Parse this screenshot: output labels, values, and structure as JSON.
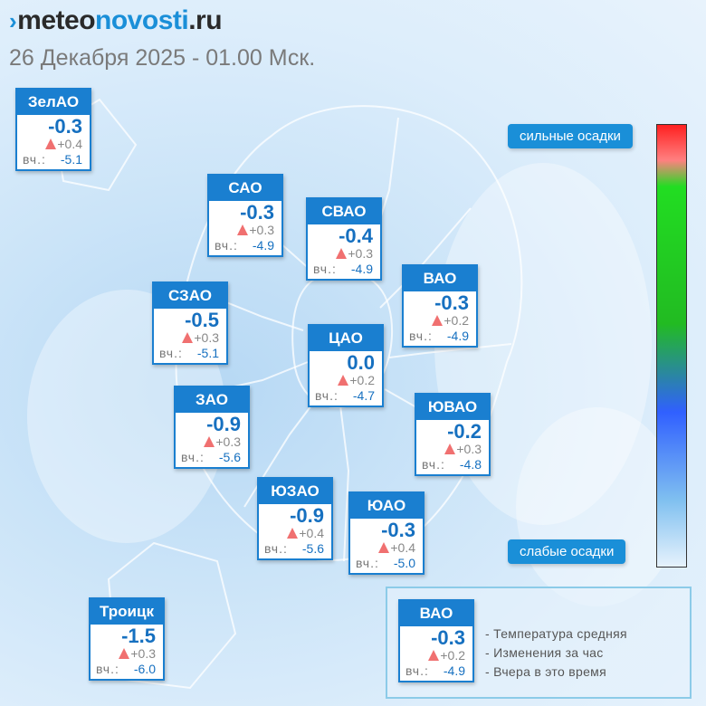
{
  "header": {
    "logo_prefix": "meteo",
    "logo_suffix": "novosti",
    "logo_domain": ".ru",
    "datetime": "26 Декабря 2025 - 01.00 Мск."
  },
  "districts": [
    {
      "name": "ЗелАО",
      "temp": "-0.3",
      "change": "+0.4",
      "yesterday_label": "вч.:",
      "yesterday": "-5.1"
    },
    {
      "name": "САО",
      "temp": "-0.3",
      "change": "+0.3",
      "yesterday_label": "вч.:",
      "yesterday": "-4.9"
    },
    {
      "name": "СВАО",
      "temp": "-0.4",
      "change": "+0.3",
      "yesterday_label": "вч.:",
      "yesterday": "-4.9"
    },
    {
      "name": "ВАО",
      "temp": "-0.3",
      "change": "+0.2",
      "yesterday_label": "вч.:",
      "yesterday": "-4.9"
    },
    {
      "name": "СЗАО",
      "temp": "-0.5",
      "change": "+0.3",
      "yesterday_label": "вч.:",
      "yesterday": "-5.1"
    },
    {
      "name": "ЦАО",
      "temp": "0.0",
      "change": "+0.2",
      "yesterday_label": "вч.:",
      "yesterday": "-4.7"
    },
    {
      "name": "ЗАО",
      "temp": "-0.9",
      "change": "+0.3",
      "yesterday_label": "вч.:",
      "yesterday": "-5.6"
    },
    {
      "name": "ЮВАО",
      "temp": "-0.2",
      "change": "+0.3",
      "yesterday_label": "вч.:",
      "yesterday": "-4.8"
    },
    {
      "name": "ЮЗАО",
      "temp": "-0.9",
      "change": "+0.4",
      "yesterday_label": "вч.:",
      "yesterday": "-5.6"
    },
    {
      "name": "ЮАО",
      "temp": "-0.3",
      "change": "+0.4",
      "yesterday_label": "вч.:",
      "yesterday": "-5.0"
    },
    {
      "name": "Троицк",
      "temp": "-1.5",
      "change": "+0.3",
      "yesterday_label": "вч.:",
      "yesterday": "-6.0"
    }
  ],
  "scale": {
    "top_label": "сильные осадки",
    "bottom_label": "слабые осадки"
  },
  "legend": {
    "sample": {
      "name": "ВАО",
      "temp": "-0.3",
      "change": "+0.2",
      "yesterday_label": "вч.:",
      "yesterday": "-4.9"
    },
    "items": [
      "- Температура средняя",
      "- Изменения за час",
      "- Вчера в это время"
    ]
  },
  "colors": {
    "accent": "#1a7fd0",
    "rise_triangle": "#f07070",
    "temperature_text": "#1670c0"
  }
}
